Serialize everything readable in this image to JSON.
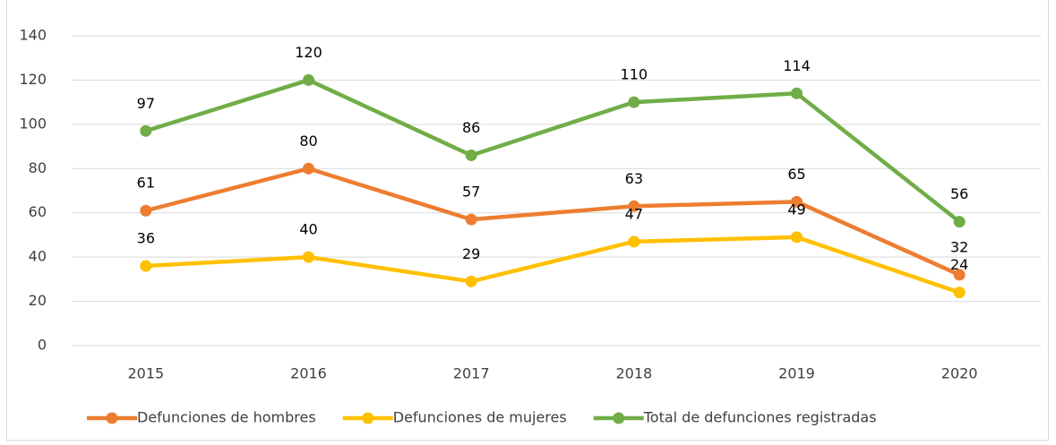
{
  "chart_data": {
    "type": "line",
    "categories": [
      "2015",
      "2016",
      "2017",
      "2018",
      "2019",
      "2020"
    ],
    "series": [
      {
        "name": "Defunciones de hombres",
        "color": "#ed7d31",
        "values": [
          61,
          80,
          57,
          63,
          65,
          32
        ]
      },
      {
        "name": "Defunciones de mujeres",
        "color": "#ffc000",
        "values": [
          36,
          40,
          29,
          47,
          49,
          24
        ]
      },
      {
        "name": "Total de defunciones registradas",
        "color": "#70ad47",
        "values": [
          97,
          120,
          86,
          110,
          114,
          56
        ]
      }
    ],
    "ylim": [
      0,
      140
    ],
    "yticks": [
      0,
      20,
      40,
      60,
      80,
      100,
      120,
      140
    ],
    "grid": true,
    "legend": "bottom"
  }
}
